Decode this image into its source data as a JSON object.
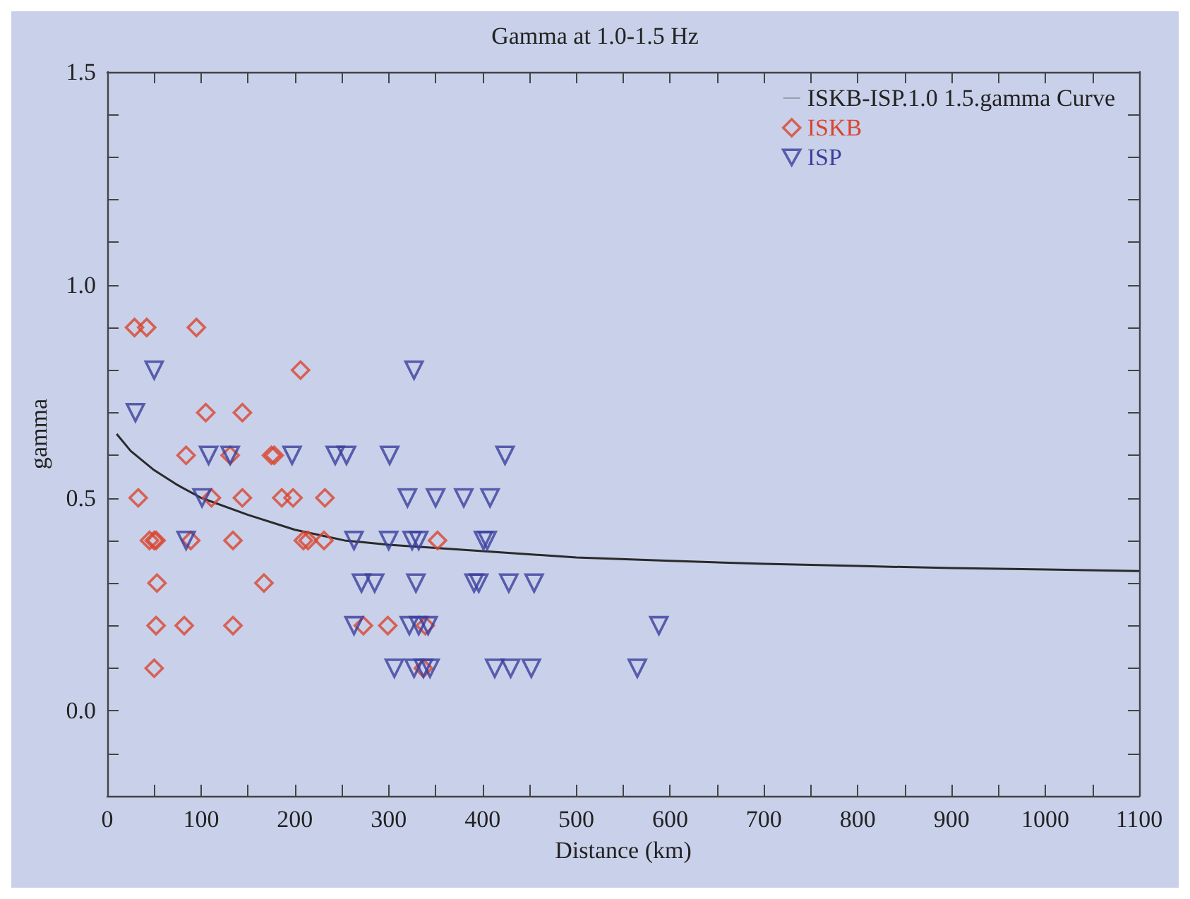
{
  "chart_data": {
    "type": "scatter",
    "title": "Gamma at 1.0-1.5 Hz",
    "xlabel": "Distance (km)",
    "ylabel": "gamma",
    "xlim": [
      0,
      1100
    ],
    "xticks": [
      0,
      {
        "value": 50,
        "label": null
      },
      100,
      {
        "value": 150,
        "label": null
      },
      200,
      {
        "value": 250,
        "label": null
      },
      300,
      {
        "value": 350,
        "label": null
      },
      400,
      {
        "value": 450,
        "label": null
      },
      500,
      {
        "value": 550,
        "label": null
      },
      600,
      {
        "value": 650,
        "label": null
      },
      700,
      {
        "value": 750,
        "label": null
      },
      800,
      {
        "value": 850,
        "label": null
      },
      900,
      {
        "value": 950,
        "label": null
      },
      1000,
      {
        "value": 1050,
        "label": null
      },
      1100
    ],
    "ylim": [
      -0.2,
      1.5
    ],
    "yticks": [
      {
        "value": -0.2,
        "label": null
      },
      {
        "value": -0.1,
        "label": null
      },
      {
        "value": 0,
        "label": "0.0"
      },
      {
        "value": 0.1,
        "label": null
      },
      {
        "value": 0.2,
        "label": null
      },
      {
        "value": 0.3,
        "label": null
      },
      {
        "value": 0.4,
        "label": null
      },
      {
        "value": 0.5,
        "label": "0.5"
      },
      {
        "value": 0.6,
        "label": null
      },
      {
        "value": 0.7,
        "label": null
      },
      {
        "value": 0.8,
        "label": null
      },
      {
        "value": 0.9,
        "label": null
      },
      {
        "value": 1,
        "label": "1.0"
      },
      {
        "value": 1.1,
        "label": null
      },
      {
        "value": 1.2,
        "label": null
      },
      {
        "value": 1.3,
        "label": null
      },
      {
        "value": 1.4,
        "label": null
      },
      {
        "value": 1.5,
        "label": "1.5"
      }
    ],
    "grid": false,
    "legend": "top right",
    "series": [
      {
        "name": "ISKB-ISP.1.0 1.5.gamma Curve",
        "type": "line",
        "color": "#2a2a2a",
        "marker": "none",
        "line_style": "solid",
        "x": [
          10,
          25,
          50,
          75,
          100,
          150,
          200,
          253,
          300,
          400,
          500,
          600,
          700,
          800,
          900,
          1000,
          1100
        ],
        "values": [
          0.65,
          0.61,
          0.565,
          0.53,
          0.5,
          0.46,
          0.425,
          0.4,
          0.39,
          0.375,
          0.36,
          0.352,
          0.345,
          0.34,
          0.335,
          0.332,
          0.328
        ]
      },
      {
        "name": "ISKB",
        "color": "#d9452e",
        "marker": "diamond",
        "x": [
          29,
          42,
          95,
          206,
          105,
          144,
          84,
          131,
          175,
          178,
          33,
          111,
          144,
          186,
          198,
          232,
          45,
          50,
          52,
          89,
          134,
          209,
          214,
          231,
          352,
          53,
          167,
          52,
          82,
          134,
          273,
          299,
          339,
          50,
          337
        ],
        "values": [
          0.9,
          0.9,
          0.9,
          0.8,
          0.7,
          0.7,
          0.6,
          0.6,
          0.6,
          0.6,
          0.5,
          0.5,
          0.5,
          0.5,
          0.5,
          0.5,
          0.4,
          0.4,
          0.4,
          0.4,
          0.4,
          0.4,
          0.4,
          0.4,
          0.4,
          0.3,
          0.3,
          0.2,
          0.2,
          0.2,
          0.2,
          0.2,
          0.2,
          0.1,
          0.1
        ]
      },
      {
        "name": "ISP",
        "color": "#3b3f9c",
        "marker": "triangle",
        "x": [
          50,
          327,
          30,
          108,
          131,
          197,
          243,
          255,
          301,
          424,
          101,
          320,
          350,
          380,
          408,
          84,
          263,
          300,
          325,
          332,
          401,
          405,
          271,
          285,
          329,
          391,
          396,
          428,
          455,
          263,
          322,
          332,
          342,
          588,
          306,
          327,
          337,
          344,
          413,
          430,
          452,
          565
        ],
        "values": [
          0.8,
          0.8,
          0.7,
          0.6,
          0.6,
          0.6,
          0.6,
          0.6,
          0.6,
          0.6,
          0.5,
          0.5,
          0.5,
          0.5,
          0.5,
          0.4,
          0.4,
          0.4,
          0.4,
          0.4,
          0.4,
          0.4,
          0.3,
          0.3,
          0.3,
          0.3,
          0.3,
          0.3,
          0.3,
          0.2,
          0.2,
          0.2,
          0.2,
          0.2,
          0.1,
          0.1,
          0.1,
          0.1,
          0.1,
          0.1,
          0.1,
          0.1
        ]
      }
    ]
  }
}
